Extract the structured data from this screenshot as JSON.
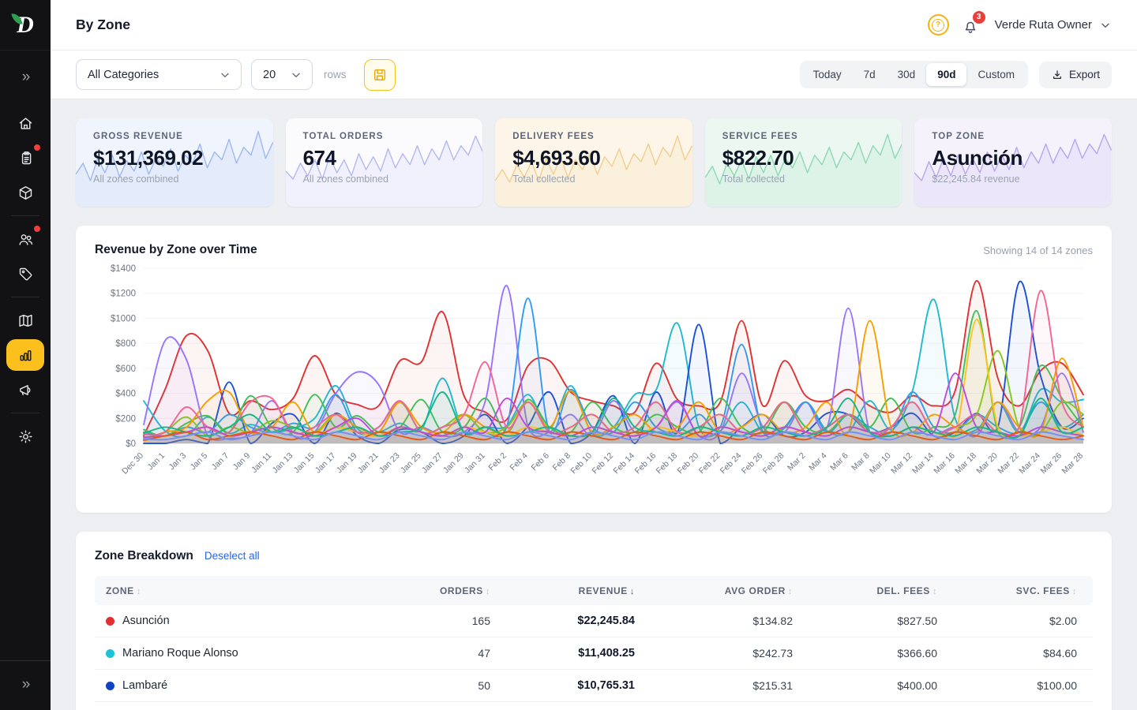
{
  "sidebar": {
    "expand_glyph": "»",
    "items": [
      {
        "icon": "home",
        "badge": false,
        "active": false
      },
      {
        "icon": "orders",
        "badge": true,
        "active": false
      },
      {
        "icon": "products",
        "badge": false,
        "active": false
      },
      {
        "icon": "customers",
        "badge": true,
        "active": false,
        "divider_before": true
      },
      {
        "icon": "tags",
        "badge": false,
        "active": false
      },
      {
        "icon": "map",
        "badge": false,
        "active": false,
        "divider_before": true
      },
      {
        "icon": "analytics",
        "badge": false,
        "active": true
      },
      {
        "icon": "marketing",
        "badge": false,
        "active": false
      },
      {
        "icon": "settings",
        "badge": false,
        "active": false,
        "divider_before": true
      }
    ]
  },
  "header": {
    "title": "By Zone",
    "help_glyph": "?",
    "notification_count": "3",
    "user_name": "Verde Ruta Owner"
  },
  "toolbar": {
    "category_filter_value": "All Categories",
    "rows_value": "20",
    "rows_label": "rows",
    "ranges": [
      "Today",
      "7d",
      "30d",
      "90d",
      "Custom"
    ],
    "active_range": "90d",
    "export_label": "Export"
  },
  "cards": [
    {
      "label": "GROSS REVENUE",
      "value": "$131,369.02",
      "sub": "All zones combined",
      "bg": "#f0f4fd",
      "stroke": "#9db9f2",
      "spark": [
        38,
        52,
        30,
        58,
        40,
        62,
        35,
        55,
        42,
        66,
        38,
        58,
        48,
        70,
        42,
        62,
        52,
        76,
        46,
        66,
        56,
        82,
        52,
        72,
        62,
        92,
        58,
        78
      ]
    },
    {
      "label": "TOTAL ORDERS",
      "value": "674",
      "sub": "All zones combined",
      "bg": "#fbfbfe",
      "stroke": "#b4b8f0",
      "spark": [
        42,
        32,
        52,
        36,
        56,
        32,
        60,
        40,
        56,
        36,
        64,
        44,
        60,
        42,
        70,
        46,
        64,
        50,
        74,
        50,
        70,
        56,
        80,
        56,
        74,
        62,
        86,
        66
      ]
    },
    {
      "label": "DELIVERY FEES",
      "value": "$4,693.60",
      "sub": "Total collected",
      "bg": "#fdf6e8",
      "stroke": "#f2cd90",
      "spark": [
        30,
        44,
        28,
        50,
        34,
        54,
        30,
        58,
        38,
        60,
        34,
        56,
        44,
        64,
        38,
        60,
        48,
        70,
        44,
        64,
        54,
        76,
        50,
        72,
        60,
        86,
        56,
        74
      ]
    },
    {
      "label": "SERVICE FEES",
      "value": "$822.70",
      "sub": "Total collected",
      "bg": "#ebf7f0",
      "stroke": "#8ed9b4",
      "spark": [
        34,
        48,
        26,
        52,
        36,
        56,
        32,
        60,
        40,
        62,
        36,
        58,
        46,
        66,
        40,
        62,
        50,
        72,
        46,
        66,
        56,
        78,
        52,
        74,
        62,
        88,
        58,
        76
      ]
    },
    {
      "label": "TOP ZONE",
      "value": "Asunción",
      "sub": "$22,245.84 revenue",
      "bg": "#f5f2fc",
      "stroke": "#b8a6ef",
      "spark": [
        40,
        30,
        54,
        34,
        58,
        36,
        62,
        38,
        58,
        40,
        66,
        42,
        62,
        44,
        72,
        46,
        66,
        52,
        76,
        52,
        72,
        58,
        82,
        58,
        76,
        64,
        88,
        68
      ]
    }
  ],
  "chart_panel": {
    "title": "Revenue by Zone over Time",
    "meta": "Showing 14 of 14 zones"
  },
  "chart_data": {
    "type": "line",
    "title": "Revenue by Zone over Time",
    "ylim": [
      0,
      1400
    ],
    "y_ticks": [
      "$0",
      "$200",
      "$400",
      "$600",
      "$800",
      "$1000",
      "$1200",
      "$1400"
    ],
    "grid": true,
    "legend": false,
    "x": [
      "Dec 30",
      "Jan 1",
      "Jan 3",
      "Jan 5",
      "Jan 7",
      "Jan 9",
      "Jan 11",
      "Jan 13",
      "Jan 15",
      "Jan 17",
      "Jan 19",
      "Jan 21",
      "Jan 23",
      "Jan 25",
      "Jan 27",
      "Jan 29",
      "Jan 31",
      "Feb 2",
      "Feb 4",
      "Feb 6",
      "Feb 8",
      "Feb 10",
      "Feb 12",
      "Feb 14",
      "Feb 16",
      "Feb 18",
      "Feb 20",
      "Feb 22",
      "Feb 24",
      "Feb 26",
      "Feb 28",
      "Mar 2",
      "Mar 4",
      "Mar 6",
      "Mar 8",
      "Mar 10",
      "Mar 12",
      "Mar 14",
      "Mar 16",
      "Mar 18",
      "Mar 20",
      "Mar 22",
      "Mar 24",
      "Mar 26",
      "Mar 28"
    ],
    "series": [
      {
        "name": "Asunción",
        "color": "#e03131",
        "values": [
          60,
          430,
          860,
          740,
          240,
          340,
          270,
          360,
          700,
          390,
          310,
          300,
          660,
          650,
          1050,
          380,
          250,
          190,
          620,
          660,
          410,
          340,
          300,
          250,
          640,
          350,
          300,
          330,
          980,
          300,
          660,
          380,
          340,
          430,
          300,
          250,
          380,
          300,
          420,
          1300,
          520,
          300,
          580,
          640,
          390
        ]
      },
      {
        "name": "Mariano Roque Alonso",
        "color": "#22b8cf",
        "values": [
          340,
          100,
          60,
          210,
          80,
          150,
          90,
          120,
          200,
          460,
          120,
          90,
          160,
          110,
          520,
          90,
          130,
          140,
          390,
          120,
          460,
          80,
          130,
          390,
          430,
          960,
          130,
          100,
          330,
          90,
          120,
          330,
          100,
          90,
          340,
          110,
          420,
          1150,
          200,
          110,
          330,
          90,
          430,
          330,
          350
        ]
      },
      {
        "name": "Lambaré",
        "color": "#1b4fd8",
        "values": [
          0,
          0,
          30,
          0,
          490,
          0,
          160,
          230,
          0,
          240,
          60,
          0,
          110,
          90,
          0,
          60,
          230,
          0,
          140,
          410,
          0,
          90,
          380,
          0,
          410,
          90,
          950,
          0,
          130,
          230,
          60,
          90,
          240,
          230,
          90,
          130,
          240,
          60,
          90,
          240,
          130,
          1290,
          540,
          130,
          200
        ]
      },
      {
        "name": null,
        "color": "#9775fa",
        "values": [
          150,
          820,
          670,
          60,
          40,
          80,
          340,
          60,
          90,
          400,
          570,
          470,
          90,
          130,
          60,
          90,
          340,
          1260,
          130,
          90,
          230,
          60,
          340,
          90,
          130,
          330,
          60,
          90,
          560,
          130,
          90,
          330,
          130,
          1080,
          90,
          130,
          330,
          90,
          130,
          60,
          330,
          90,
          130,
          560,
          90
        ]
      },
      {
        "name": null,
        "color": "#339af0",
        "values": [
          90,
          60,
          130,
          90,
          230,
          130,
          90,
          160,
          130,
          390,
          90,
          130,
          330,
          90,
          130,
          230,
          90,
          130,
          1160,
          90,
          430,
          130,
          90,
          330,
          130,
          90,
          230,
          130,
          790,
          90,
          130,
          330,
          90,
          230,
          130,
          90,
          410,
          130,
          90,
          230,
          130,
          90,
          330,
          130,
          230
        ]
      },
      {
        "name": null,
        "color": "#40c057",
        "values": [
          110,
          60,
          160,
          220,
          90,
          380,
          130,
          90,
          390,
          130,
          220,
          90,
          130,
          350,
          90,
          130,
          360,
          90,
          350,
          130,
          90,
          330,
          130,
          90,
          230,
          130,
          90,
          360,
          130,
          90,
          330,
          130,
          90,
          230,
          130,
          360,
          90,
          130,
          230,
          1060,
          90,
          130,
          620,
          360,
          130
        ]
      },
      {
        "name": null,
        "color": "#82c91e",
        "values": [
          40,
          90,
          210,
          60,
          130,
          90,
          180,
          130,
          90,
          230,
          130,
          90,
          330,
          90,
          130,
          230,
          90,
          130,
          330,
          90,
          130,
          230,
          90,
          130,
          330,
          90,
          130,
          230,
          90,
          130,
          330,
          90,
          130,
          230,
          90,
          130,
          330,
          90,
          130,
          230,
          740,
          130,
          90,
          330,
          230
        ]
      },
      {
        "name": null,
        "color": "#f59f00",
        "values": [
          30,
          90,
          130,
          340,
          410,
          90,
          130,
          330,
          90,
          230,
          130,
          90,
          330,
          130,
          90,
          230,
          130,
          90,
          330,
          130,
          420,
          90,
          130,
          230,
          90,
          130,
          330,
          90,
          130,
          230,
          90,
          130,
          330,
          90,
          980,
          130,
          90,
          230,
          130,
          90,
          330,
          130,
          90,
          680,
          130
        ]
      },
      {
        "name": null,
        "color": "#fcc419",
        "values": [
          20,
          60,
          90,
          130,
          60,
          90,
          130,
          90,
          60,
          130,
          90,
          60,
          130,
          90,
          60,
          130,
          90,
          60,
          130,
          90,
          60,
          130,
          90,
          60,
          130,
          90,
          60,
          130,
          90,
          60,
          130,
          90,
          60,
          130,
          90,
          60,
          130,
          90,
          60,
          990,
          130,
          60,
          90,
          130,
          60
        ]
      },
      {
        "name": null,
        "color": "#f06595",
        "values": [
          70,
          90,
          290,
          130,
          90,
          330,
          360,
          90,
          130,
          230,
          90,
          130,
          340,
          90,
          130,
          230,
          650,
          130,
          330,
          90,
          130,
          230,
          90,
          130,
          330,
          90,
          130,
          230,
          90,
          130,
          330,
          90,
          130,
          230,
          90,
          130,
          330,
          90,
          130,
          230,
          90,
          130,
          1220,
          330,
          130
        ]
      },
      {
        "name": null,
        "color": "#be4bdb",
        "values": [
          50,
          60,
          90,
          130,
          60,
          90,
          130,
          90,
          60,
          130,
          200,
          60,
          130,
          90,
          60,
          130,
          90,
          360,
          130,
          90,
          60,
          130,
          90,
          60,
          130,
          340,
          60,
          130,
          90,
          60,
          130,
          90,
          60,
          130,
          90,
          60,
          130,
          90,
          560,
          130,
          90,
          60,
          130,
          90,
          60
        ]
      },
      {
        "name": null,
        "color": "#12b886",
        "values": [
          80,
          130,
          90,
          60,
          130,
          230,
          90,
          130,
          60,
          90,
          130,
          60,
          90,
          130,
          410,
          90,
          130,
          60,
          90,
          130,
          60,
          90,
          360,
          130,
          90,
          60,
          130,
          90,
          60,
          130,
          90,
          60,
          130,
          360,
          90,
          60,
          130,
          90,
          60,
          130,
          90,
          60,
          360,
          90,
          130
        ]
      },
      {
        "name": null,
        "color": "#e8590c",
        "values": [
          25,
          60,
          90,
          30,
          60,
          90,
          60,
          30,
          90,
          60,
          30,
          90,
          60,
          30,
          90,
          60,
          30,
          90,
          60,
          30,
          90,
          60,
          30,
          90,
          60,
          30,
          90,
          60,
          30,
          90,
          60,
          30,
          90,
          60,
          30,
          90,
          60,
          30,
          90,
          60,
          30,
          90,
          60,
          30,
          60
        ]
      },
      {
        "name": null,
        "color": "#748ffc",
        "values": [
          35,
          30,
          60,
          90,
          30,
          60,
          90,
          60,
          30,
          90,
          60,
          30,
          90,
          60,
          30,
          90,
          60,
          30,
          90,
          60,
          30,
          90,
          60,
          30,
          90,
          60,
          30,
          90,
          60,
          30,
          90,
          60,
          30,
          90,
          60,
          30,
          90,
          60,
          30,
          90,
          60,
          30,
          90,
          60,
          30
        ]
      }
    ]
  },
  "table": {
    "title": "Zone Breakdown",
    "action": "Deselect all",
    "columns": [
      {
        "label": "ZONE",
        "sort": "inactive"
      },
      {
        "label": "ORDERS",
        "sort": "inactive"
      },
      {
        "label": "REVENUE",
        "sort": "desc"
      },
      {
        "label": "AVG ORDER",
        "sort": "inactive"
      },
      {
        "label": "DEL. FEES",
        "sort": "inactive"
      },
      {
        "label": "SVC. FEES",
        "sort": "inactive"
      }
    ],
    "rows": [
      {
        "dot": "#e03131",
        "zone": "Asunción",
        "orders": "165",
        "revenue": "$22,245.84",
        "avg_order": "$134.82",
        "del_fees": "$827.50",
        "svc_fees": "$2.00"
      },
      {
        "dot": "#19c3d8",
        "zone": "Mariano Roque Alonso",
        "orders": "47",
        "revenue": "$11,408.25",
        "avg_order": "$242.73",
        "del_fees": "$366.60",
        "svc_fees": "$84.60"
      },
      {
        "dot": "#1241c4",
        "zone": "Lambaré",
        "orders": "50",
        "revenue": "$10,765.31",
        "avg_order": "$215.31",
        "del_fees": "$400.00",
        "svc_fees": "$100.00"
      }
    ]
  }
}
